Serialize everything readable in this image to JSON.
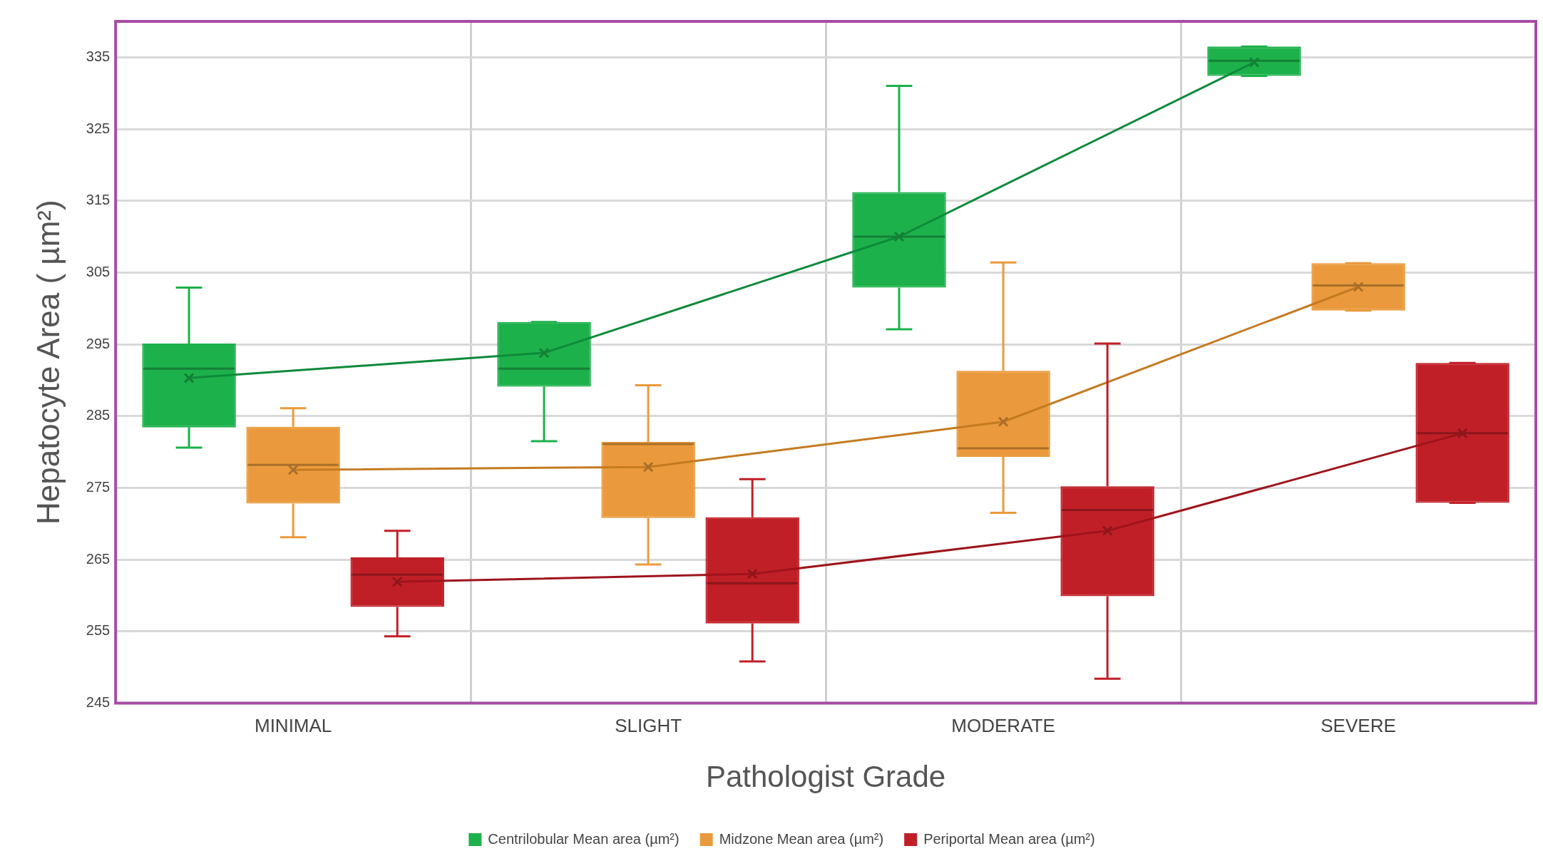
{
  "chart_data": {
    "type": "box",
    "xlabel": "Pathologist Grade",
    "ylabel": "Hepatocyte Area ( µm²)",
    "categories": [
      "MINIMAL",
      "SLIGHT",
      "MODERATE",
      "SEVERE"
    ],
    "ylim": [
      245,
      340
    ],
    "yticks": [
      245,
      255,
      265,
      275,
      285,
      295,
      305,
      315,
      325,
      335
    ],
    "grid": true,
    "legend": "bottom",
    "series": [
      {
        "name": "Centrilobular Mean area (µm²)",
        "color": "#1db14b",
        "boxes": [
          {
            "low": 280.6,
            "q1": 283.4,
            "median": 291.6,
            "q3": 295.1,
            "high": 302.9,
            "mean": 290.3
          },
          {
            "low": 281.5,
            "q1": 289.1,
            "median": 291.6,
            "q3": 298.1,
            "high": 298.1,
            "mean": 293.8
          },
          {
            "low": 297.1,
            "q1": 302.9,
            "median": 310.0,
            "q3": 316.2,
            "high": 331.0,
            "mean": 310.0
          },
          {
            "low": 332.4,
            "q1": 332.4,
            "median": 334.5,
            "q3": 336.5,
            "high": 336.5,
            "mean": 334.3
          }
        ]
      },
      {
        "name": "Midzone Mean area (µm²)",
        "color": "#ea9a3c",
        "boxes": [
          {
            "low": 268.1,
            "q1": 272.8,
            "median": 278.2,
            "q3": 283.5,
            "high": 286.1,
            "mean": 277.5
          },
          {
            "low": 264.3,
            "q1": 270.8,
            "median": 281.1,
            "q3": 281.4,
            "high": 289.3,
            "mean": 277.9
          },
          {
            "low": 271.5,
            "q1": 279.3,
            "median": 280.5,
            "q3": 291.3,
            "high": 306.4,
            "mean": 284.2
          },
          {
            "low": 299.7,
            "q1": 299.7,
            "median": 303.2,
            "q3": 306.3,
            "high": 306.3,
            "mean": 303.0
          }
        ]
      },
      {
        "name": "Periportal Mean area (µm²)",
        "color": "#c11f27",
        "boxes": [
          {
            "low": 254.3,
            "q1": 258.4,
            "median": 262.9,
            "q3": 265.3,
            "high": 269.0,
            "mean": 261.9
          },
          {
            "low": 250.8,
            "q1": 256.1,
            "median": 261.7,
            "q3": 270.9,
            "high": 276.2,
            "mean": 263.0
          },
          {
            "low": 248.4,
            "q1": 259.9,
            "median": 271.9,
            "q3": 275.2,
            "high": 295.1,
            "mean": 269.0
          },
          {
            "low": 272.9,
            "q1": 272.9,
            "median": 282.6,
            "q3": 292.4,
            "high": 292.4,
            "mean": 282.6
          }
        ]
      },
      {
        "type": "line",
        "color": "#0e8a3a",
        "marker": "none",
        "values": [
          290.3,
          293.8,
          310.0,
          334.3
        ]
      },
      {
        "type": "line",
        "color": "#c57a20",
        "marker": "none",
        "values": [
          277.5,
          277.9,
          284.2,
          303.0
        ]
      },
      {
        "type": "line",
        "color": "#9e141b",
        "marker": "none",
        "values": [
          261.9,
          263.0,
          269.0,
          282.6
        ]
      }
    ]
  }
}
